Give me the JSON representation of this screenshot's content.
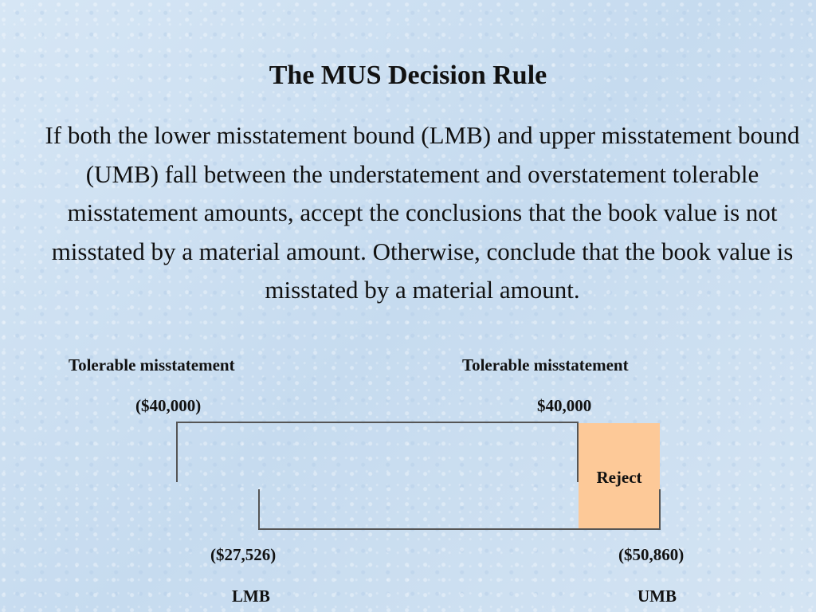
{
  "slide": {
    "title": "The MUS Decision Rule",
    "paragraph": "If both the lower misstatement bound (LMB) and upper misstatement bound (UMB) fall between the understatement and overstatement tolerable misstatement amounts, accept the conclusions that the book value is  not misstated by a material amount.  Otherwise, conclude that the book value is misstated by a material amount."
  },
  "diagram": {
    "tolerable_left": {
      "label": "Tolerable misstatement",
      "amount": "($40,000)"
    },
    "tolerable_right": {
      "label": "Tolerable misstatement",
      "amount": "$40,000"
    },
    "reject_label": "Reject",
    "reject_color": "#fdc998",
    "lmb": {
      "value": "($27,526)",
      "label": "LMB"
    },
    "umb": {
      "value": "($50,860)",
      "label": "UMB"
    }
  }
}
